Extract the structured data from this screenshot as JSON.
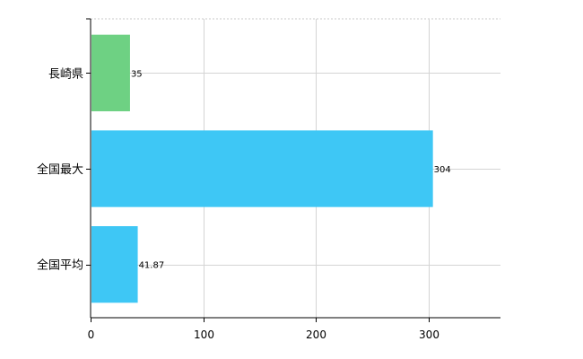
{
  "chart_data": {
    "type": "bar",
    "orientation": "horizontal",
    "categories": [
      "長崎県",
      "全国最大",
      "全国平均"
    ],
    "values": [
      35,
      304,
      41.87
    ],
    "value_labels": [
      "35",
      "304",
      "41.87"
    ],
    "bar_colors": [
      "#6ed183",
      "#3ec7f5",
      "#3ec7f5"
    ],
    "xlim": [
      0,
      364
    ],
    "xticks": [
      0,
      100,
      200,
      300
    ],
    "xtick_labels": [
      "0",
      "100",
      "200",
      "300"
    ],
    "grid": true,
    "legend": "none"
  }
}
